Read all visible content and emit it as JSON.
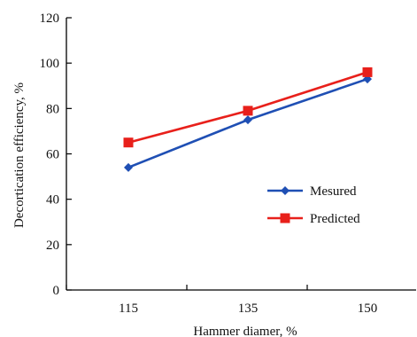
{
  "chart_data": {
    "type": "line",
    "title": "",
    "xlabel": "Hammer diamer, %",
    "ylabel": "Decortication efficiency, %",
    "categories": [
      "115",
      "135",
      "150"
    ],
    "ylim": [
      0,
      120
    ],
    "yticks": [
      0,
      20,
      40,
      60,
      80,
      100,
      120
    ],
    "grid": false,
    "legend_position": "right",
    "series": [
      {
        "name": "Mesured",
        "values": [
          54,
          75,
          93
        ],
        "color": "#1f4fb4",
        "marker": "diamond"
      },
      {
        "name": "Predicted",
        "values": [
          65,
          79,
          96
        ],
        "color": "#e8201b",
        "marker": "square"
      }
    ]
  }
}
